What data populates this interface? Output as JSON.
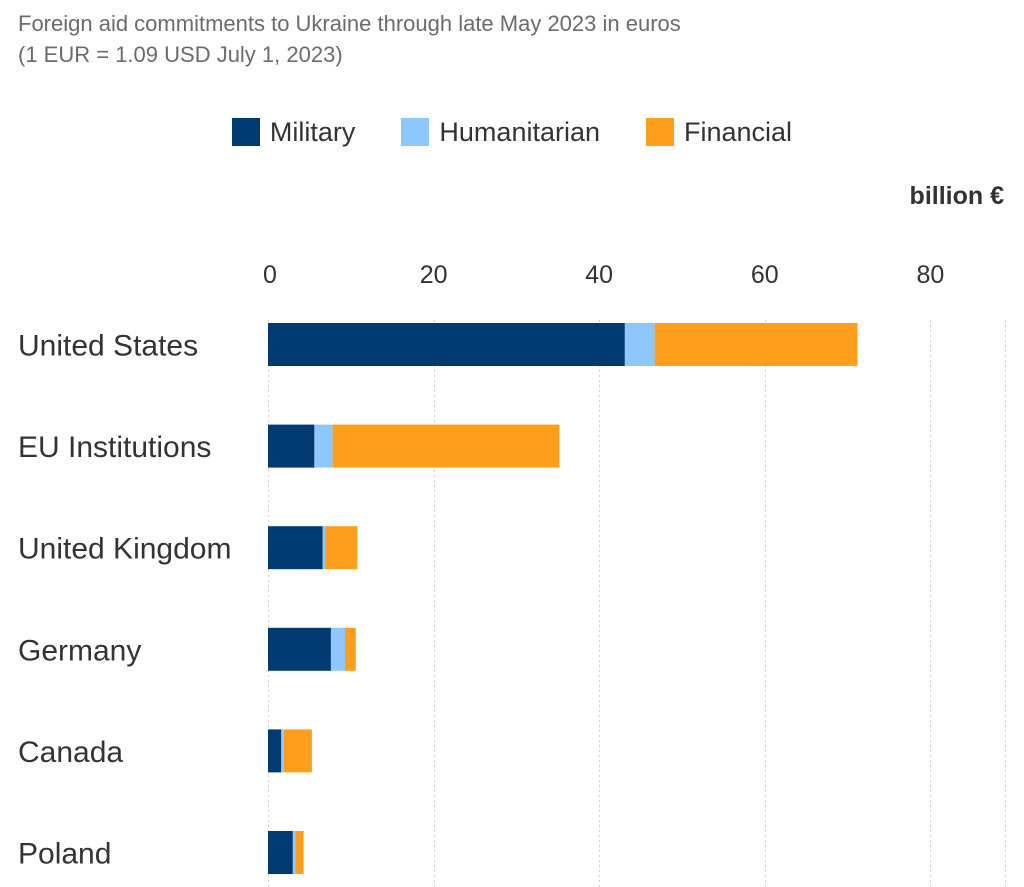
{
  "subtitle_lines": [
    "Foreign aid commitments to Ukraine through late May 2023 in euros",
    "(1 EUR = 1.09 USD July 1, 2023)"
  ],
  "unit_label": "billion €",
  "colors": {
    "military": "#003a70",
    "humanitarian": "#8ec7fb",
    "financial": "#fd9e1c"
  },
  "chart_data": {
    "type": "bar",
    "orientation": "horizontal",
    "stacked": true,
    "categories": [
      "United States",
      "EU Institutions",
      "United Kingdom",
      "Germany",
      "Canada",
      "Poland"
    ],
    "series": [
      {
        "name": "Military",
        "color": "#003a70",
        "values": [
          43.1,
          5.6,
          6.6,
          7.6,
          1.6,
          3.0
        ]
      },
      {
        "name": "Humanitarian",
        "color": "#8ec7fb",
        "values": [
          3.6,
          2.2,
          0.3,
          1.7,
          0.3,
          0.3
        ]
      },
      {
        "name": "Financial",
        "color": "#fd9e1c",
        "values": [
          24.5,
          27.4,
          3.9,
          1.3,
          3.4,
          1.0
        ]
      }
    ],
    "xlim": [
      0,
      89
    ],
    "xticks": [
      0,
      20,
      40,
      60,
      80
    ],
    "xlabel": "billion €",
    "grid": true,
    "legend_position": "top-center"
  }
}
